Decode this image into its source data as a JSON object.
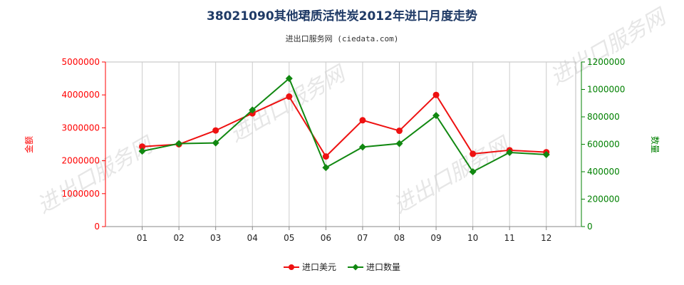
{
  "chart_data": {
    "type": "line",
    "title": "38021090其他珺质活性炭2012年进口月度走势",
    "subtitle": "进出口服务网 (ciedata.com)",
    "categories": [
      "01",
      "02",
      "03",
      "04",
      "05",
      "06",
      "07",
      "08",
      "09",
      "10",
      "11",
      "12"
    ],
    "y_left": {
      "label": "金额",
      "ylim": [
        0,
        5000000
      ],
      "ticks": [
        0,
        1000000,
        2000000,
        3000000,
        4000000,
        5000000
      ],
      "tick_labels": [
        "0",
        "1000000",
        "2000000",
        "3000000",
        "4000000",
        "5000000"
      ],
      "color": "#ff0000"
    },
    "y_right": {
      "label": "数量",
      "ylim": [
        0,
        1200000
      ],
      "ticks": [
        0,
        200000,
        400000,
        600000,
        800000,
        1000000,
        1200000
      ],
      "tick_labels": [
        "0",
        "200000",
        "400000",
        "600000",
        "800000",
        "1000000",
        "1200000"
      ],
      "color": "#008000"
    },
    "series": [
      {
        "name": "进口美元",
        "axis": "left",
        "color": "#ee1111",
        "marker": "circle",
        "values": [
          2430000,
          2500000,
          2920000,
          3440000,
          3950000,
          2130000,
          3230000,
          2910000,
          4000000,
          2210000,
          2320000,
          2260000
        ]
      },
      {
        "name": "进口数量",
        "axis": "right",
        "color": "#118811",
        "marker": "diamond",
        "values": [
          550000,
          605000,
          610000,
          850000,
          1080000,
          430000,
          580000,
          605000,
          810000,
          400000,
          540000,
          525000
        ]
      }
    ],
    "grid": "vertical",
    "legend_position": "bottom-center"
  },
  "watermark_text": "进出口服务网"
}
